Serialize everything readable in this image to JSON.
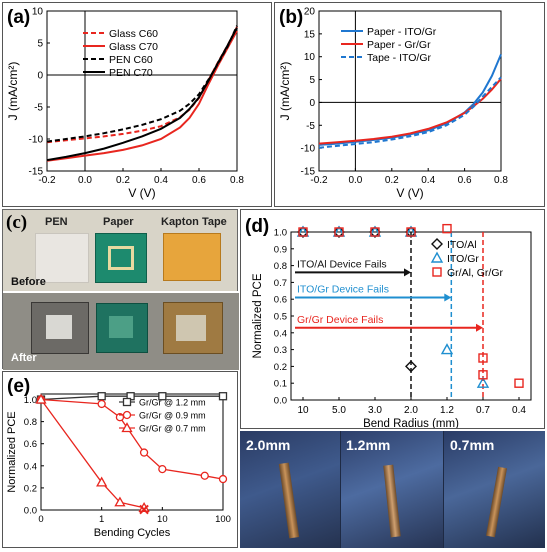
{
  "chart_data": [
    {
      "panel": "(a)",
      "type": "line",
      "xlabel": "V (V)",
      "ylabel": "J (mA/cm²)",
      "xlim": [
        -0.2,
        0.8
      ],
      "ylim": [
        -15,
        10
      ],
      "xticks": [
        "-0.2",
        "0.0",
        "0.2",
        "0.4",
        "0.6",
        "0.8"
      ],
      "yticks": [
        "10",
        "5",
        "0",
        "-5",
        "-10",
        "-15"
      ],
      "legend_position": "top-left",
      "series": [
        {
          "name": "Glass C60",
          "color": "#e8261f",
          "dash": true,
          "x": [
            -0.2,
            -0.1,
            0,
            0.1,
            0.2,
            0.3,
            0.4,
            0.5,
            0.55,
            0.6,
            0.65,
            0.7,
            0.75,
            0.8
          ],
          "y": [
            -10.5,
            -10.2,
            -9.9,
            -9.6,
            -9.2,
            -8.7,
            -8.0,
            -6.6,
            -5.4,
            -3.6,
            -0.8,
            2.0,
            4.6,
            7.5
          ]
        },
        {
          "name": "Glass C70",
          "color": "#e8261f",
          "dash": false,
          "x": [
            -0.2,
            -0.1,
            0,
            0.1,
            0.2,
            0.3,
            0.4,
            0.5,
            0.55,
            0.6,
            0.65,
            0.7,
            0.75,
            0.8
          ],
          "y": [
            -13.4,
            -13.0,
            -12.6,
            -12.2,
            -11.7,
            -11.0,
            -10.0,
            -8.2,
            -6.7,
            -4.5,
            -1.4,
            1.5,
            4.2,
            6.9
          ]
        },
        {
          "name": "PEN C60",
          "color": "#000000",
          "dash": true,
          "x": [
            -0.2,
            -0.1,
            0,
            0.1,
            0.2,
            0.3,
            0.4,
            0.5,
            0.55,
            0.6,
            0.65,
            0.7,
            0.75,
            0.8
          ],
          "y": [
            -10.4,
            -10.0,
            -9.6,
            -9.1,
            -8.5,
            -7.8,
            -6.9,
            -5.6,
            -4.5,
            -3.0,
            -0.7,
            1.8,
            4.4,
            7.7
          ]
        },
        {
          "name": "PEN C70",
          "color": "#000000",
          "dash": false,
          "x": [
            -0.2,
            -0.1,
            0,
            0.1,
            0.2,
            0.3,
            0.4,
            0.5,
            0.55,
            0.6,
            0.65,
            0.7,
            0.75,
            0.8
          ],
          "y": [
            -13.3,
            -12.8,
            -12.2,
            -11.5,
            -10.6,
            -9.6,
            -8.4,
            -6.7,
            -5.3,
            -3.5,
            -0.9,
            1.9,
            4.6,
            7.4
          ]
        }
      ]
    },
    {
      "panel": "(b)",
      "type": "line",
      "xlabel": "V (V)",
      "ylabel": "J (mA/cm²)",
      "xlim": [
        -0.2,
        0.8
      ],
      "ylim": [
        -15,
        20
      ],
      "xticks": [
        "-0.2",
        "0.0",
        "0.2",
        "0.4",
        "0.6",
        "0.8"
      ],
      "yticks": [
        "20",
        "15",
        "10",
        "5",
        "0",
        "-5",
        "-10",
        "-15"
      ],
      "legend_position": "top-left",
      "series": [
        {
          "name": "Paper - ITO/Gr",
          "color": "#1f77d0",
          "dash": false,
          "x": [
            -0.2,
            -0.1,
            0,
            0.1,
            0.2,
            0.3,
            0.4,
            0.5,
            0.6,
            0.65,
            0.7,
            0.75,
            0.8
          ],
          "y": [
            -9.3,
            -9.0,
            -8.6,
            -8.2,
            -7.7,
            -7.0,
            -6.1,
            -4.6,
            -2.2,
            -0.3,
            2.2,
            5.8,
            10.5
          ]
        },
        {
          "name": "Paper - Gr/Gr",
          "color": "#e8261f",
          "dash": false,
          "x": [
            -0.2,
            -0.1,
            0,
            0.1,
            0.2,
            0.3,
            0.4,
            0.5,
            0.6,
            0.65,
            0.7,
            0.75,
            0.8
          ],
          "y": [
            -9.0,
            -8.7,
            -8.4,
            -8.0,
            -7.5,
            -6.8,
            -5.8,
            -4.4,
            -2.3,
            -0.8,
            0.8,
            2.8,
            5.2
          ]
        },
        {
          "name": "Tape - ITO/Gr",
          "color": "#1f77d0",
          "dash": true,
          "x": [
            -0.2,
            -0.1,
            0,
            0.1,
            0.2,
            0.3,
            0.4,
            0.5,
            0.6,
            0.65,
            0.7,
            0.75,
            0.8
          ],
          "y": [
            -9.9,
            -9.5,
            -9.1,
            -8.7,
            -8.1,
            -7.4,
            -6.5,
            -5.0,
            -2.7,
            -0.9,
            1.3,
            3.4,
            5.5
          ]
        }
      ]
    },
    {
      "panel": "(d)",
      "type": "scatter",
      "xlabel": "Bend Radius (mm)",
      "ylabel": "Normalized PCE",
      "categories": [
        "10",
        "5.0",
        "3.0",
        "2.0",
        "1.2",
        "0.7",
        "0.4"
      ],
      "ylim": [
        0.0,
        1.0
      ],
      "yticks": [
        "1.0",
        "0.9",
        "0.8",
        "0.7",
        "0.6",
        "0.5",
        "0.4",
        "0.3",
        "0.2",
        "0.1",
        "0.0"
      ],
      "legend_position": "top-right",
      "series": [
        {
          "name": "ITO/Al",
          "color": "#111111",
          "marker": "diamond",
          "points": [
            [
              0,
              1.0
            ],
            [
              1,
              1.0
            ],
            [
              2,
              1.0
            ],
            [
              3,
              1.0
            ],
            [
              3,
              0.2
            ]
          ]
        },
        {
          "name": "ITO/Gr",
          "color": "#1f8fd0",
          "marker": "triangle",
          "points": [
            [
              0,
              1.0
            ],
            [
              1,
              1.0
            ],
            [
              2,
              1.0
            ],
            [
              3,
              1.0
            ],
            [
              4,
              0.3
            ],
            [
              5,
              0.1
            ]
          ]
        },
        {
          "name": "Gr/Al, Gr/Gr",
          "color": "#e8261f",
          "marker": "square",
          "points": [
            [
              0,
              1.0
            ],
            [
              1,
              1.0
            ],
            [
              2,
              1.0
            ],
            [
              3,
              1.0
            ],
            [
              4,
              1.02
            ],
            [
              5,
              0.25
            ],
            [
              5,
              0.15
            ],
            [
              6,
              0.1
            ]
          ]
        }
      ],
      "fail_lines": [
        {
          "label": "ITO/Al Device Fails",
          "color": "#111111",
          "x_index": 3,
          "y": 0.76
        },
        {
          "label": "ITO/Gr Device Fails",
          "color": "#1f8fd0",
          "x_index": 4.12,
          "y": 0.61
        },
        {
          "label": "Gr/Gr Device Fails",
          "color": "#e8261f",
          "x_index": 5.0,
          "y": 0.43
        }
      ]
    },
    {
      "panel": "(e)",
      "type": "line",
      "xlabel": "Bending Cycles",
      "ylabel": "Normalized PCE",
      "xscale": "log",
      "xlim": [
        0.1,
        100
      ],
      "ylim": [
        0.0,
        1.0
      ],
      "xticks": [
        "0",
        "1",
        "10",
        "100"
      ],
      "yticks": [
        "1.0",
        "0.8",
        "0.6",
        "0.4",
        "0.2",
        "0.0"
      ],
      "legend_position": "top-right",
      "series": [
        {
          "name": "Gr/Gr @ 1.2 mm",
          "color": "#333333",
          "marker": "square",
          "x": [
            0.1,
            1,
            3,
            10,
            100
          ],
          "y": [
            1.0,
            1.03,
            1.03,
            1.03,
            1.03
          ]
        },
        {
          "name": "Gr/Gr @ 0.9 mm",
          "color": "#e8261f",
          "marker": "circle",
          "x": [
            0.1,
            1,
            2,
            5,
            10,
            50,
            100
          ],
          "y": [
            1.0,
            0.96,
            0.84,
            0.52,
            0.37,
            0.31,
            0.28
          ]
        },
        {
          "name": "Gr/Gr @ 0.7 mm",
          "color": "#e8261f",
          "marker": "triangle",
          "x": [
            0.1,
            1,
            2,
            5
          ],
          "y": [
            1.0,
            0.25,
            0.07,
            0.02
          ]
        }
      ],
      "fail_marker": {
        "x": 5,
        "y": 0.0,
        "symbol": "✕",
        "color": "#e8261f"
      }
    }
  ],
  "panel_c": {
    "label": "(c)",
    "headers": [
      "PEN",
      "Paper",
      "Kapton Tape"
    ],
    "before": "Before",
    "after": "After"
  },
  "panel_f": {
    "labels": [
      "2.0mm",
      "1.2mm",
      "0.7mm"
    ]
  }
}
